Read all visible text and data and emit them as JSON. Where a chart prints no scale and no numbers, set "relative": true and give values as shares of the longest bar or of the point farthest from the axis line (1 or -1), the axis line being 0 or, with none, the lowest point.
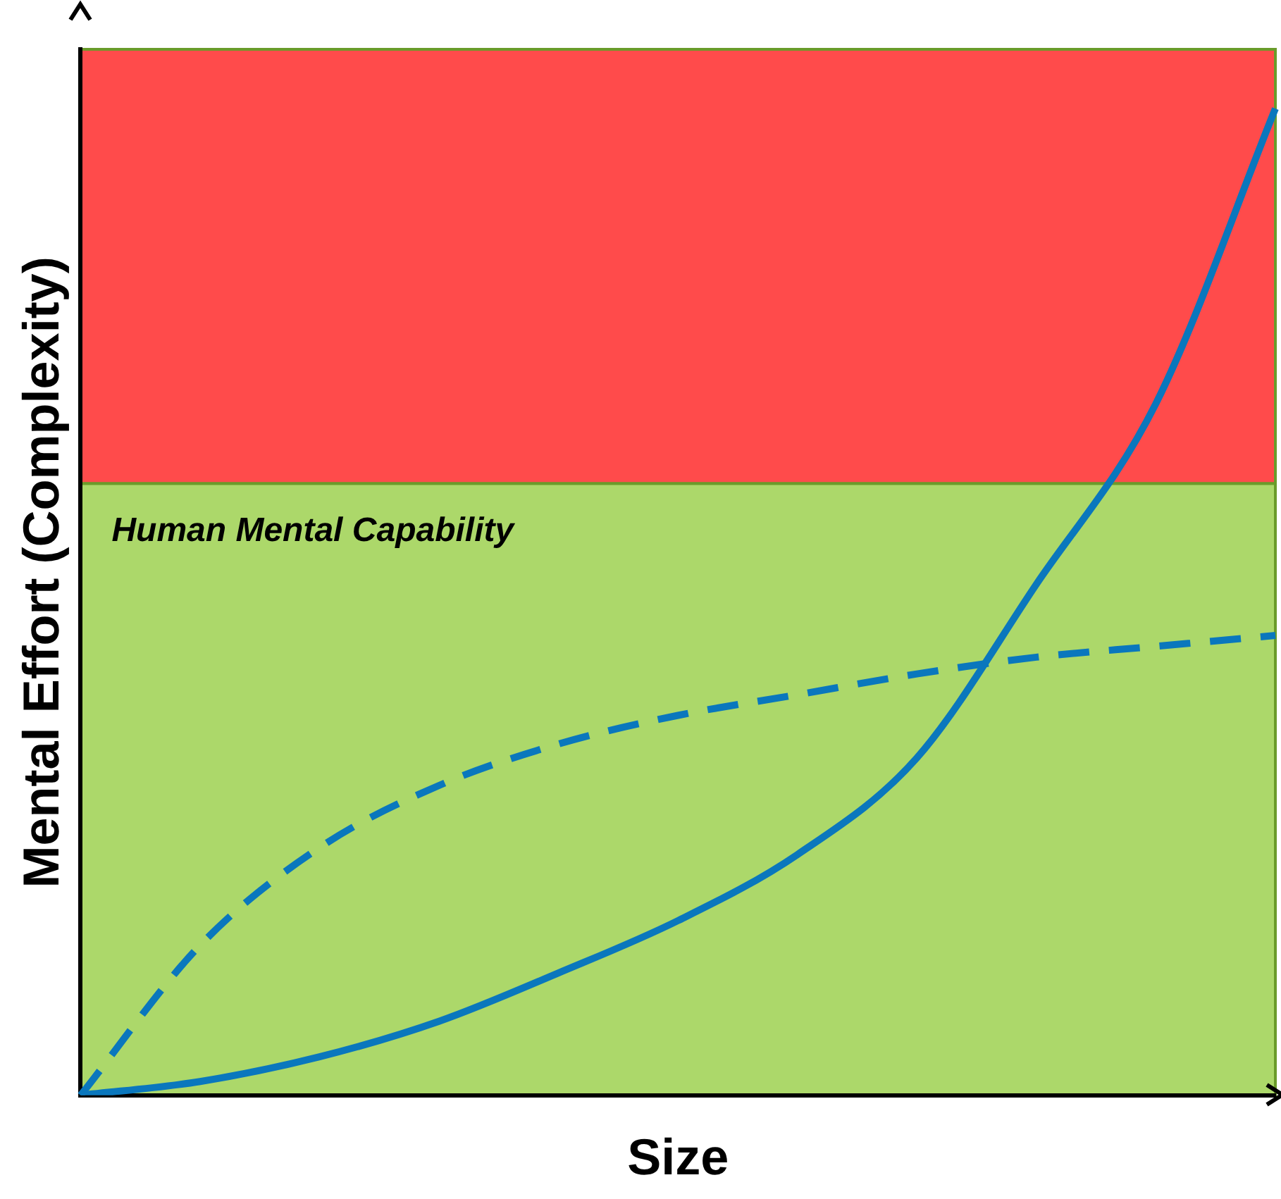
{
  "chart_data": {
    "type": "line",
    "relative": true,
    "xlabel": "Size",
    "ylabel": "Mental Effort (Complexity)",
    "categories": [
      null,
      null,
      null,
      null,
      null,
      null,
      null,
      null,
      null,
      null,
      null
    ],
    "series": [
      {
        "color": "#0a77bd",
        "line_style": "solid",
        "values": [
          0,
          0.014,
          0.039,
          0.075,
          0.124,
          0.177,
          0.244,
          0.342,
          0.518,
          0.701,
          1
        ]
      },
      {
        "color": "#0a77bd",
        "line_style": "dashed",
        "values": [
          0,
          0.152,
          0.251,
          0.314,
          0.356,
          0.385,
          0.406,
          0.427,
          0.444,
          0.455,
          0.466
        ]
      }
    ],
    "bands": [
      {
        "axis": "y",
        "from": 0,
        "to": 0.62,
        "label": "Human Mental Capability",
        "color": "#acd86a"
      },
      {
        "axis": "y",
        "from": 0.62,
        "to": 1.06,
        "color": "#ff4b4b"
      }
    ],
    "legend": false,
    "marker": "none"
  }
}
